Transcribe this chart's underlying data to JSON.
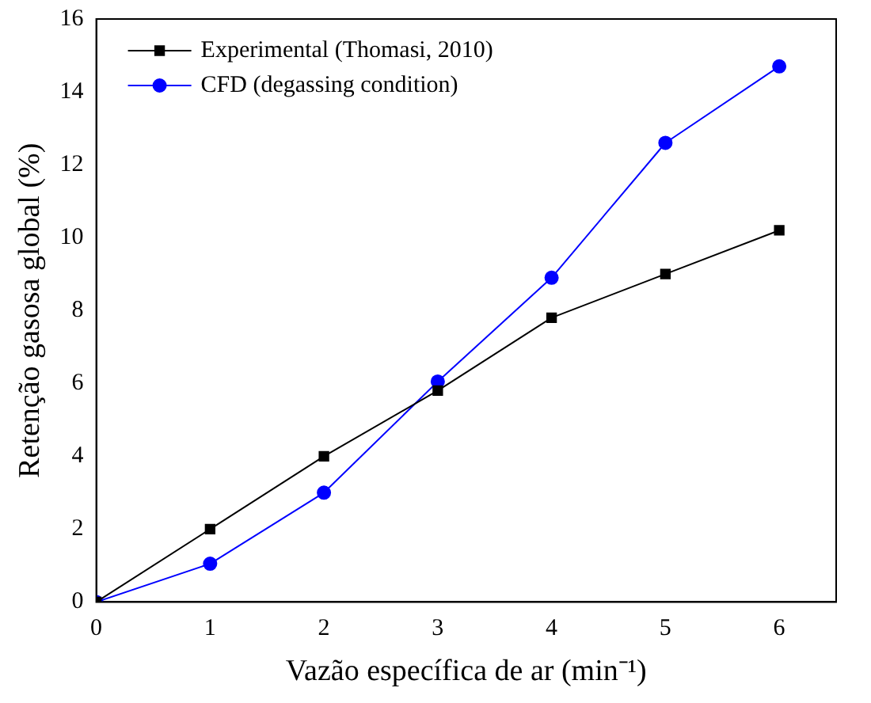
{
  "chart_data": {
    "type": "line",
    "xlabel": "Vazão específica de ar (min⁻¹)",
    "ylabel": "Retenção gasosa global (%)",
    "x": [
      0,
      1,
      2,
      3,
      4,
      5,
      6
    ],
    "series": [
      {
        "name": "Experimental (Thomasi, 2010)",
        "color": "#000000",
        "marker": "square",
        "values": [
          0,
          2.0,
          4.0,
          5.8,
          7.8,
          9.0,
          10.2
        ]
      },
      {
        "name": "CFD (degassing condition)",
        "color": "#0000ff",
        "marker": "circle",
        "values": [
          0,
          1.05,
          3.0,
          6.05,
          8.9,
          12.6,
          14.7
        ]
      }
    ],
    "xlim": [
      0,
      6.5
    ],
    "xticks": [
      0,
      1,
      2,
      3,
      4,
      5,
      6
    ],
    "ylim": [
      0,
      16
    ],
    "yticks": [
      0,
      2,
      4,
      6,
      8,
      10,
      12,
      14,
      16
    ],
    "grid": false,
    "legend": "top left",
    "line_style": "solid"
  }
}
